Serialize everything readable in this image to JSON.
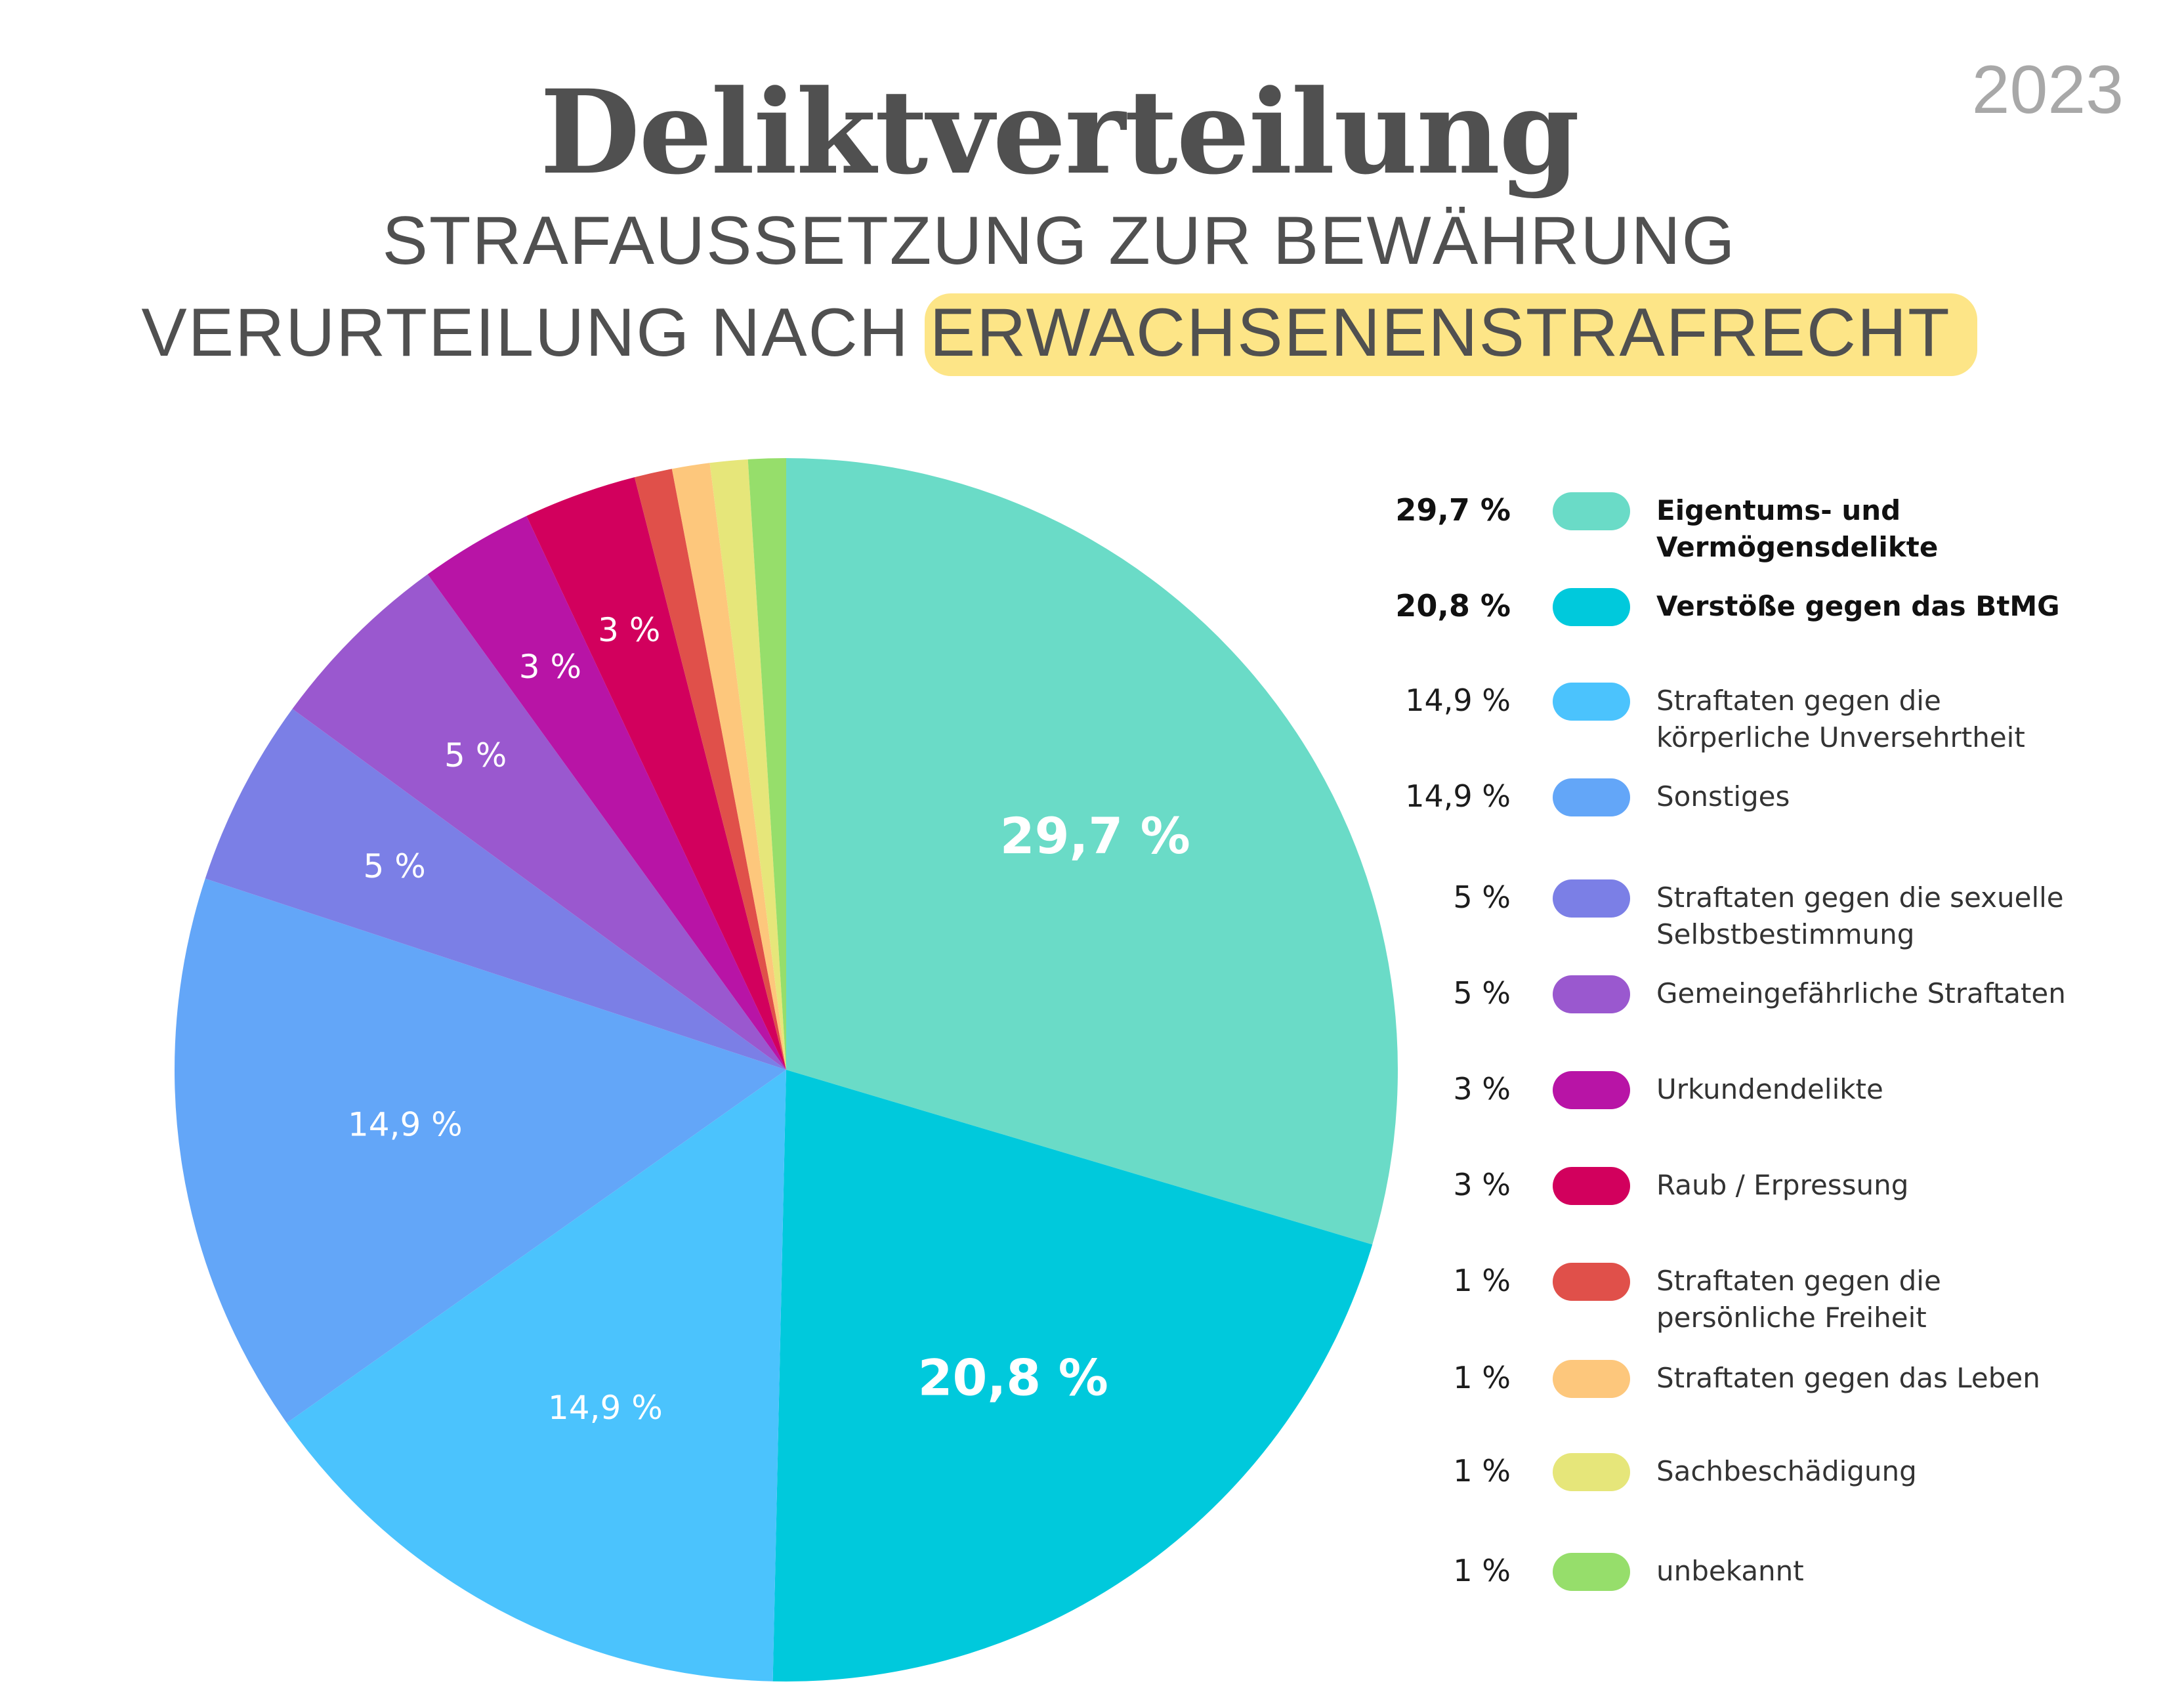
{
  "header": {
    "year": "2023",
    "title": "Deliktverteilung",
    "subtitle_line1": "STRAFAUSSETZUNG ZUR BEWÄHRUNG",
    "subtitle_line2_plain": "VERURTEILUNG NACH",
    "subtitle_line2_highlight": "ERWACHSENENSTRAFRECHT",
    "highlight_color": "#fde587"
  },
  "chart_data": {
    "type": "pie",
    "title": "Deliktverteilung",
    "slices": [
      {
        "label": "Eigentums- und Vermögensdelikte",
        "value": 29.7,
        "pct_text": "29,7 %",
        "color": "#6adbc7",
        "bold": true
      },
      {
        "label": "Verstöße gegen das BtMG",
        "value": 20.8,
        "pct_text": "20,8 %",
        "color": "#00c9dc",
        "bold": true
      },
      {
        "label": "Straftaten gegen die körperliche Unversehrtheit",
        "value": 14.9,
        "pct_text": "14,9 %",
        "color": "#4bc3fd",
        "bold": false
      },
      {
        "label": "Sonstiges",
        "value": 14.9,
        "pct_text": "14,9 %",
        "color": "#63a6f8",
        "bold": false
      },
      {
        "label": "Straftaten gegen die sexuelle Selbstbestimmung",
        "value": 5,
        "pct_text": "5 %",
        "color": "#7b7fe6",
        "bold": false
      },
      {
        "label": "Gemeingefährliche Straftaten",
        "value": 5,
        "pct_text": "5 %",
        "color": "#9a58cf",
        "bold": false
      },
      {
        "label": "Urkundendelikte",
        "value": 3,
        "pct_text": "3 %",
        "color": "#b814a6",
        "bold": false
      },
      {
        "label": "Raub / Erpressung",
        "value": 3,
        "pct_text": "3 %",
        "color": "#d2005d",
        "bold": false
      },
      {
        "label": "Straftaten gegen die persönliche Freiheit",
        "value": 1,
        "pct_text": "1 %",
        "color": "#e0504a",
        "bold": false
      },
      {
        "label": "Straftaten gegen das Leben",
        "value": 1,
        "pct_text": "1 %",
        "color": "#fdc77c",
        "bold": false
      },
      {
        "label": "Sachbeschädigung",
        "value": 1,
        "pct_text": "1 %",
        "color": "#e6e67a",
        "bold": false
      },
      {
        "label": "unbekannt",
        "value": 1,
        "pct_text": "1 %",
        "color": "#96de6b",
        "bold": false
      }
    ],
    "legend_position": "right"
  }
}
